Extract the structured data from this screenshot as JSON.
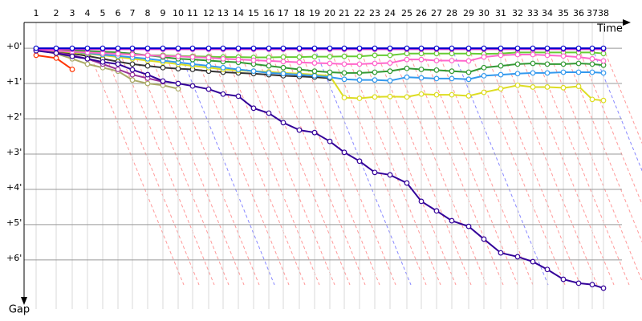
{
  "chart_data": {
    "type": "line",
    "x_label": "Time",
    "y_label": "Gap",
    "xlim": [
      0,
      1490
    ],
    "ylim": [
      -0.73,
      7.39
    ],
    "xticks": [
      {
        "value": 30,
        "label": "1"
      },
      {
        "value": 80,
        "label": "2"
      },
      {
        "value": 120,
        "label": "3"
      },
      {
        "value": 158,
        "label": "4"
      },
      {
        "value": 196,
        "label": "5"
      },
      {
        "value": 234,
        "label": "6"
      },
      {
        "value": 270,
        "label": "7"
      },
      {
        "value": 308,
        "label": "8"
      },
      {
        "value": 346,
        "label": "9"
      },
      {
        "value": 384,
        "label": "10"
      },
      {
        "value": 420,
        "label": "11"
      },
      {
        "value": 460,
        "label": "12"
      },
      {
        "value": 496,
        "label": "13"
      },
      {
        "value": 534,
        "label": "14"
      },
      {
        "value": 572,
        "label": "15"
      },
      {
        "value": 610,
        "label": "16"
      },
      {
        "value": 646,
        "label": "17"
      },
      {
        "value": 686,
        "label": "18"
      },
      {
        "value": 724,
        "label": "19"
      },
      {
        "value": 762,
        "label": "20"
      },
      {
        "value": 798,
        "label": "21"
      },
      {
        "value": 836,
        "label": "22"
      },
      {
        "value": 874,
        "label": "23"
      },
      {
        "value": 912,
        "label": "24"
      },
      {
        "value": 954,
        "label": "25"
      },
      {
        "value": 990,
        "label": "26"
      },
      {
        "value": 1028,
        "label": "27"
      },
      {
        "value": 1066,
        "label": "28"
      },
      {
        "value": 1108,
        "label": "29"
      },
      {
        "value": 1146,
        "label": "30"
      },
      {
        "value": 1188,
        "label": "31"
      },
      {
        "value": 1230,
        "label": "32"
      },
      {
        "value": 1268,
        "label": "33"
      },
      {
        "value": 1304,
        "label": "34"
      },
      {
        "value": 1344,
        "label": "35"
      },
      {
        "value": 1382,
        "label": "36"
      },
      {
        "value": 1416,
        "label": "37"
      },
      {
        "value": 1444,
        "label": "38"
      }
    ],
    "yticks": [
      {
        "value": 0,
        "label": "+0'"
      },
      {
        "value": 1,
        "label": "+1'"
      },
      {
        "value": 2,
        "label": "+2'"
      },
      {
        "value": 3,
        "label": "+3'"
      },
      {
        "value": 4,
        "label": "+4'"
      },
      {
        "value": 5,
        "label": "+5'"
      },
      {
        "value": 6,
        "label": "+6'"
      }
    ],
    "grid": true,
    "x": [
      30,
      80,
      120,
      158,
      196,
      234,
      270,
      308,
      346,
      384,
      420,
      460,
      496,
      534,
      572,
      610,
      646,
      686,
      724,
      762,
      798,
      836,
      874,
      912,
      954,
      990,
      1028,
      1066,
      1108,
      1146,
      1188,
      1230,
      1268,
      1304,
      1344,
      1382,
      1416,
      1444
    ],
    "series": [
      {
        "color": "#aaaa66",
        "values": [
          0.05,
          0.15,
          0.3,
          0.45,
          0.55,
          0.65,
          0.9,
          1.0,
          1.05,
          1.15,
          null,
          null,
          null,
          null,
          null,
          null,
          null,
          null,
          null,
          null,
          null,
          null,
          null,
          null,
          null,
          null,
          null,
          null,
          null,
          null,
          null,
          null,
          null,
          null,
          null,
          null,
          null,
          null
        ]
      },
      {
        "color": "#ff3300",
        "values": [
          0.2,
          0.28,
          0.6,
          null,
          null,
          null,
          null,
          null,
          null,
          null,
          null,
          null,
          null,
          null,
          null,
          null,
          null,
          null,
          null,
          null,
          null,
          null,
          null,
          null,
          null,
          null,
          null,
          null,
          null,
          null,
          null,
          null,
          null,
          null,
          null,
          null,
          null,
          null
        ]
      },
      {
        "color": "#993399",
        "values": [
          0.05,
          0.1,
          0.2,
          0.3,
          0.45,
          0.6,
          0.75,
          0.85,
          0.95,
          null,
          null,
          null,
          null,
          null,
          null,
          null,
          null,
          null,
          null,
          null,
          null,
          null,
          null,
          null,
          null,
          null,
          null,
          null,
          null,
          null,
          null,
          null,
          null,
          null,
          null,
          null,
          null,
          null
        ]
      },
      {
        "color": "#333333",
        "values": [
          0.03,
          0.08,
          0.15,
          0.22,
          0.3,
          0.38,
          0.45,
          0.5,
          0.55,
          0.58,
          0.6,
          0.65,
          0.68,
          0.7,
          0.72,
          0.75,
          0.78,
          0.8,
          0.82,
          0.85,
          null,
          null,
          null,
          null,
          null,
          null,
          null,
          null,
          null,
          null,
          null,
          null,
          null,
          null,
          null,
          null,
          null,
          null
        ]
      },
      {
        "color": "#dddd22",
        "values": [
          0.05,
          0.08,
          0.12,
          0.16,
          0.2,
          0.25,
          0.3,
          0.35,
          0.4,
          0.45,
          0.5,
          0.55,
          0.6,
          0.63,
          0.65,
          0.67,
          0.7,
          0.72,
          0.75,
          0.78,
          1.4,
          1.42,
          1.38,
          1.37,
          1.38,
          1.3,
          1.32,
          1.32,
          1.35,
          1.25,
          1.15,
          1.05,
          1.1,
          1.1,
          1.12,
          1.08,
          1.45,
          1.48
        ]
      },
      {
        "color": "#3399ee",
        "values": [
          0.03,
          0.06,
          0.1,
          0.14,
          0.18,
          0.22,
          0.26,
          0.3,
          0.35,
          0.4,
          0.45,
          0.5,
          0.55,
          0.6,
          0.65,
          0.7,
          0.72,
          0.75,
          0.78,
          0.82,
          0.88,
          0.9,
          0.9,
          0.92,
          0.82,
          0.84,
          0.86,
          0.86,
          0.88,
          0.78,
          0.75,
          0.72,
          0.7,
          0.7,
          0.68,
          0.68,
          0.68,
          0.7
        ]
      },
      {
        "color": "#339933",
        "values": [
          0.02,
          0.04,
          0.06,
          0.08,
          0.1,
          0.12,
          0.15,
          0.2,
          0.25,
          0.3,
          0.32,
          0.35,
          0.38,
          0.4,
          0.45,
          0.5,
          0.55,
          0.6,
          0.65,
          0.68,
          0.7,
          0.7,
          0.68,
          0.65,
          0.57,
          0.6,
          0.62,
          0.65,
          0.68,
          0.55,
          0.5,
          0.45,
          0.43,
          0.45,
          0.45,
          0.43,
          0.45,
          0.48
        ]
      },
      {
        "color": "#66cc33",
        "values": [
          0.05,
          0.08,
          0.1,
          0.12,
          0.14,
          0.16,
          0.18,
          0.2,
          0.2,
          0.22,
          0.23,
          0.24,
          0.25,
          0.25,
          0.26,
          0.26,
          0.25,
          0.25,
          0.24,
          0.24,
          0.23,
          0.23,
          0.2,
          0.2,
          0.15,
          0.15,
          0.15,
          0.15,
          0.15,
          0.16,
          0.15,
          0.12,
          0.12,
          0.12,
          0.12,
          0.12,
          0.12,
          0.15
        ]
      },
      {
        "color": "#ff66cc",
        "values": [
          0.05,
          0.07,
          0.1,
          0.12,
          0.14,
          0.16,
          0.18,
          0.2,
          0.22,
          0.23,
          0.25,
          0.27,
          0.3,
          0.32,
          0.34,
          0.36,
          0.38,
          0.4,
          0.42,
          0.43,
          0.45,
          0.45,
          0.43,
          0.42,
          0.32,
          0.32,
          0.35,
          0.35,
          0.36,
          0.25,
          0.2,
          0.18,
          0.18,
          0.2,
          0.22,
          0.25,
          0.3,
          0.36
        ]
      },
      {
        "color": "#cc33cc",
        "values": [
          0.03,
          0.03,
          0.03,
          0.03,
          0.03,
          0.03,
          0.03,
          0.03,
          0.03,
          0.03,
          0.03,
          0.03,
          0.03,
          0.03,
          0.03,
          0.03,
          0.03,
          0.03,
          0.03,
          0.03,
          0.03,
          0.03,
          0.03,
          0.03,
          0.03,
          0.03,
          0.03,
          0.03,
          0.03,
          0.03,
          0.03,
          0.03,
          0.03,
          0.03,
          0.03,
          0.03,
          0.03,
          0.03
        ]
      },
      {
        "color": "#330099",
        "values": [
          0.07,
          0.14,
          0.23,
          0.3,
          0.39,
          0.45,
          0.61,
          0.75,
          0.93,
          1.0,
          1.07,
          1.16,
          1.3,
          1.36,
          1.7,
          1.84,
          2.11,
          2.32,
          2.39,
          2.64,
          2.95,
          3.2,
          3.52,
          3.59,
          3.82,
          4.34,
          4.61,
          4.89,
          5.05,
          5.41,
          5.8,
          5.91,
          6.05,
          6.27,
          6.55,
          6.66,
          6.7,
          6.8
        ]
      },
      {
        "color": "#0000cc",
        "values": [
          0,
          0,
          0,
          0,
          0,
          0,
          0,
          0,
          0,
          0,
          0,
          0,
          0,
          0,
          0,
          0,
          0,
          0,
          0,
          0,
          0,
          0,
          0,
          0,
          0,
          0,
          0,
          0,
          0,
          0,
          0,
          0,
          0,
          0,
          0,
          0,
          0,
          0
        ]
      }
    ]
  }
}
